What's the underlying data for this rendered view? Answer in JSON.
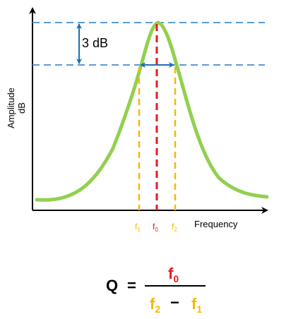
{
  "colors": {
    "curve": "#92d050",
    "center_line": "#e31b23",
    "edge_lines": "#f5b800",
    "level_lines": "#5b9bd5",
    "arrows": "#1f6fb5",
    "axes": "#000000"
  },
  "labels": {
    "db_gap": "3 dB",
    "y_axis_line1": "Amplitude",
    "y_axis_line2": "dB",
    "x_axis": "Frequency"
  },
  "ticks": {
    "f1": {
      "base": "f",
      "sub": "1"
    },
    "f0": {
      "base": "f",
      "sub": "0"
    },
    "f2": {
      "base": "f",
      "sub": "2"
    }
  },
  "formula": {
    "lhs": "Q",
    "equals": "=",
    "numerator": {
      "base": "f",
      "sub": "0"
    },
    "denominator": {
      "left": {
        "base": "f",
        "sub": "2"
      },
      "minus": "−",
      "right": {
        "base": "f",
        "sub": "1"
      }
    }
  }
}
